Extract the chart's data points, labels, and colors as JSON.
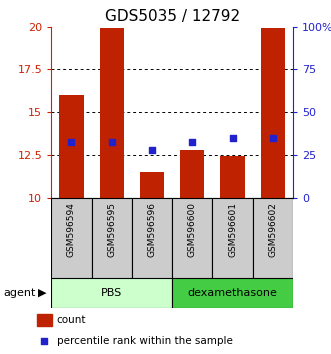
{
  "title": "GDS5035 / 12792",
  "samples": [
    "GSM596594",
    "GSM596595",
    "GSM596596",
    "GSM596600",
    "GSM596601",
    "GSM596602"
  ],
  "bar_values": [
    16.0,
    19.9,
    11.5,
    12.8,
    12.45,
    19.9
  ],
  "percentile_values": [
    33,
    33,
    28,
    33,
    35,
    35
  ],
  "ylim_left": [
    10,
    20
  ],
  "ylim_right": [
    0,
    100
  ],
  "yticks_left": [
    10,
    12.5,
    15,
    17.5,
    20
  ],
  "ytick_labels_left": [
    "10",
    "12.5",
    "15",
    "17.5",
    "20"
  ],
  "yticks_right": [
    0,
    25,
    50,
    75,
    100
  ],
  "ytick_labels_right": [
    "0",
    "25",
    "50",
    "75",
    "100%"
  ],
  "bar_color": "#bf2200",
  "square_color": "#2222cc",
  "group_pbs_color": "#ccffcc",
  "group_dex_color": "#44cc44",
  "group_labels": [
    "PBS",
    "dexamethasone"
  ],
  "agent_label": "agent",
  "legend_bar_label": "count",
  "legend_sq_label": "percentile rank within the sample",
  "left_axis_color": "#cc2200",
  "right_axis_color": "#2222cc",
  "title_fontsize": 11,
  "tick_fontsize": 8,
  "sample_fontsize": 6.5,
  "group_fontsize": 8,
  "legend_fontsize": 7.5,
  "agent_fontsize": 8
}
